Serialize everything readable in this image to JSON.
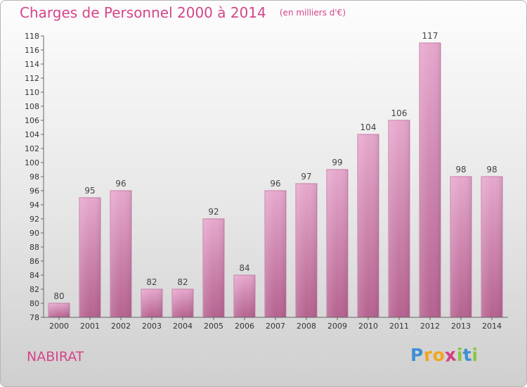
{
  "chart_data": {
    "type": "bar",
    "title": "Charges de Personnel 2000 à 2014",
    "subtitle": "(en milliers d'€)",
    "categories": [
      "2000",
      "2001",
      "2002",
      "2003",
      "2004",
      "2005",
      "2006",
      "2007",
      "2008",
      "2009",
      "2010",
      "2011",
      "2012",
      "2013",
      "2014"
    ],
    "values": [
      80,
      95,
      96,
      82,
      82,
      92,
      84,
      96,
      97,
      99,
      104,
      106,
      117,
      98,
      98
    ],
    "ylim": [
      78,
      118
    ],
    "yticks": [
      78,
      80,
      82,
      84,
      86,
      88,
      90,
      92,
      94,
      96,
      98,
      100,
      102,
      104,
      106,
      108,
      110,
      112,
      114,
      116,
      118
    ],
    "grid": false,
    "bar_color": "#d98fbb"
  },
  "commune": "NABIRAT",
  "logo": {
    "letters": [
      "P",
      "r",
      "o",
      "x",
      "i",
      "t",
      "i"
    ],
    "colors": [
      "#3f8fd2",
      "#f2a51d",
      "#f2a51d",
      "#d43d82",
      "#8cc63f",
      "#3f8fd2",
      "#8cc63f"
    ]
  }
}
